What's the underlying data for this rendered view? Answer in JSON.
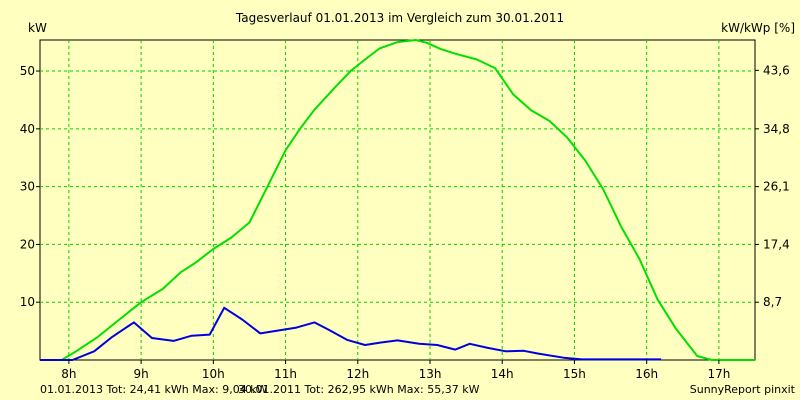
{
  "chart_data": {
    "type": "line",
    "title": "Tagesverlauf 01.01.2013 im Vergleich zum 30.01.2011",
    "ylabel_left": "kW",
    "ylabel_right": "kW/kWp [%]",
    "ylim": [
      0,
      55.37
    ],
    "yticks_left": [
      {
        "value": 10,
        "label": "10"
      },
      {
        "value": 20,
        "label": "20"
      },
      {
        "value": 30,
        "label": "30"
      },
      {
        "value": 40,
        "label": "40"
      },
      {
        "value": 50,
        "label": "50"
      }
    ],
    "yticks_right": [
      {
        "value": 8.7,
        "label": "8,7"
      },
      {
        "value": 17.4,
        "label": "17,4"
      },
      {
        "value": 26.1,
        "label": "26,1"
      },
      {
        "value": 34.8,
        "label": "34,8"
      },
      {
        "value": 43.6,
        "label": "43,6"
      }
    ],
    "y2lim": [
      0,
      48.17
    ],
    "xlim": [
      7.6,
      17.5
    ],
    "xticks": [
      {
        "value": 8,
        "label": "8h"
      },
      {
        "value": 9,
        "label": "9h"
      },
      {
        "value": 10,
        "label": "10h"
      },
      {
        "value": 11,
        "label": "11h"
      },
      {
        "value": 12,
        "label": "12h"
      },
      {
        "value": 13,
        "label": "13h"
      },
      {
        "value": 14,
        "label": "14h"
      },
      {
        "value": 15,
        "label": "15h"
      },
      {
        "value": 16,
        "label": "16h"
      },
      {
        "value": 17,
        "label": "17h"
      }
    ],
    "grid": true,
    "series": [
      {
        "name": "30.01.2011",
        "color": "#00e000",
        "x": [
          7.6,
          7.9,
          8.1,
          8.4,
          8.7,
          9.0,
          9.3,
          9.55,
          9.75,
          10.0,
          10.25,
          10.5,
          10.75,
          11.0,
          11.2,
          11.4,
          11.65,
          11.9,
          12.1,
          12.3,
          12.55,
          12.8,
          12.95,
          13.15,
          13.35,
          13.65,
          13.9,
          14.15,
          14.4,
          14.65,
          14.9,
          15.15,
          15.4,
          15.65,
          15.9,
          16.15,
          16.4,
          16.7,
          16.9,
          17.5
        ],
        "y": [
          0,
          0,
          1.5,
          4,
          7,
          10,
          12.3,
          15.2,
          16.8,
          19.2,
          21.2,
          23.8,
          30,
          36.3,
          40,
          43.3,
          46.7,
          50,
          52,
          53.9,
          55,
          55.37,
          54.9,
          53.8,
          53,
          52,
          50.5,
          46,
          43.2,
          41.4,
          38.5,
          34.5,
          29.5,
          23,
          17.5,
          10.5,
          5.5,
          0.7,
          0,
          0
        ]
      },
      {
        "name": "01.01.2013",
        "color": "#0000e0",
        "x": [
          7.6,
          8.05,
          8.35,
          8.6,
          8.9,
          9.15,
          9.45,
          9.7,
          9.95,
          10.15,
          10.4,
          10.65,
          10.9,
          11.15,
          11.4,
          11.6,
          11.85,
          12.1,
          12.3,
          12.55,
          12.85,
          13.1,
          13.35,
          13.55,
          13.8,
          14.05,
          14.3,
          14.5,
          14.85,
          15.1,
          16.2
        ],
        "y": [
          0,
          0,
          1.5,
          4,
          6.5,
          3.8,
          3.3,
          4.2,
          4.4,
          9.04,
          7,
          4.6,
          5.1,
          5.6,
          6.5,
          5.2,
          3.5,
          2.6,
          3.0,
          3.4,
          2.8,
          2.6,
          1.8,
          2.8,
          2.1,
          1.5,
          1.6,
          1.1,
          0.4,
          0.1,
          0.1
        ]
      }
    ],
    "footer": {
      "series1_text": "01.01.2013 Tot: 24,41 kWh Max: 9,04 kW",
      "series2_text": "30.01.2011 Tot: 262,95 kWh Max: 55,37 kW",
      "series1_color": "#0000e0",
      "series2_color": "#00e000",
      "credit": "SunnyReport pinxit"
    }
  }
}
